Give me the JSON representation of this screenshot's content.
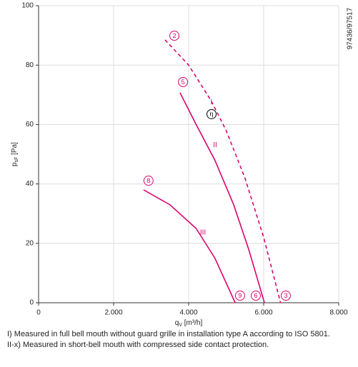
{
  "chart_data": {
    "type": "line",
    "xlabel": {
      "main": "q",
      "sub": "V",
      "unit": " [m³/h]"
    },
    "ylabel": {
      "main": "p",
      "sub": "sF",
      "unit": " [Pa]"
    },
    "reference": "97436/97517",
    "xlim": [
      0,
      8000
    ],
    "ylim": [
      0,
      100
    ],
    "xticks": [
      0,
      {
        "value": 2000,
        "label": "2.000"
      },
      {
        "value": 4000,
        "label": "4.000"
      },
      {
        "value": 6000,
        "label": "6.000"
      },
      {
        "value": 8000,
        "label": "8.000"
      }
    ],
    "yticks": [
      0,
      20,
      40,
      60,
      80,
      100
    ],
    "grid": true,
    "series": [
      {
        "name": "I",
        "color": "#d9046f",
        "dashed": true,
        "label_at": [
          4610,
          67.5
        ],
        "x": [
          3370,
          4000,
          4600,
          5000,
          5500,
          6000,
          6450
        ],
        "values": [
          88.5,
          80,
          68,
          58,
          42,
          22,
          0
        ]
      },
      {
        "name": "II",
        "color": "#d9046f",
        "dashed": false,
        "label_at": [
          4705,
          53
        ],
        "x": [
          3770,
          4200,
          4700,
          5200,
          5600,
          6020
        ],
        "values": [
          70.7,
          60,
          48,
          33,
          18,
          0
        ]
      },
      {
        "name": "III",
        "color": "#d9046f",
        "dashed": false,
        "label_at": [
          4381,
          23.6
        ],
        "x": [
          2800,
          3500,
          4200,
          4700,
          5240
        ],
        "values": [
          38,
          33,
          25,
          15,
          0
        ]
      }
    ],
    "annotations": [
      {
        "text": "2",
        "x": 3620,
        "y": 89.9,
        "color": "#d9046f"
      },
      {
        "text": "5",
        "x": 3850,
        "y": 74.3,
        "color": "#d9046f"
      },
      {
        "text": "8",
        "x": 2930,
        "y": 41.1,
        "color": "#d9046f"
      },
      {
        "text": "9",
        "x": 5370,
        "y": 2.4,
        "color": "#d9046f"
      },
      {
        "text": "6",
        "x": 5790,
        "y": 2.4,
        "color": "#d9046f"
      },
      {
        "text": "3",
        "x": 6590,
        "y": 2.4,
        "color": "#d9046f"
      },
      {
        "text": "η",
        "x": 4610,
        "y": 63.5,
        "color": "#000000"
      }
    ]
  },
  "notes": [
    "I) Measured in full bell mouth without guard grille in installation type A according to ISO 5801.",
    "II-x) Measured in short-bell mouth with compressed side contact protection."
  ]
}
